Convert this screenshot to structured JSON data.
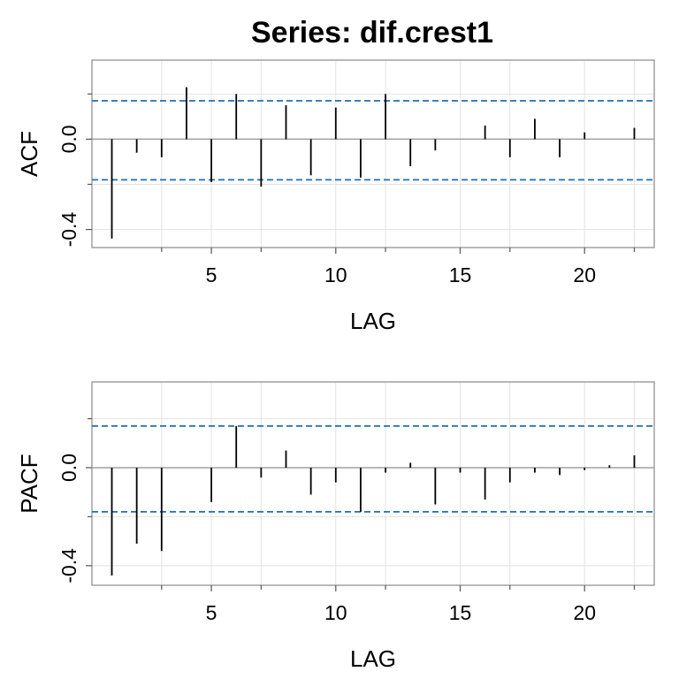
{
  "chart_data": [
    {
      "type": "bar",
      "title": "Series:  dif.crest1",
      "xlabel": "LAG",
      "ylabel": "ACF",
      "xlim": [
        0.2,
        22.8
      ],
      "ylim": [
        -0.48,
        0.35
      ],
      "x_ticks": [
        5,
        10,
        15,
        20
      ],
      "x_tick_labels": [
        "5",
        "10",
        "15",
        "20"
      ],
      "y_ticks": [
        -0.4,
        0.0
      ],
      "y_tick_labels": [
        "-0.4",
        "0.0"
      ],
      "minor_y_ticks": [
        -0.2,
        0.2
      ],
      "minor_x_ticks": [
        3,
        7,
        12,
        17,
        22
      ],
      "grid": true,
      "zero_line": 0,
      "confidence_bounds": [
        0.17,
        -0.18
      ],
      "bound_color": "#1f6fb5",
      "bar_color": "#000000",
      "x": [
        1,
        2,
        3,
        4,
        5,
        6,
        7,
        8,
        9,
        10,
        11,
        12,
        13,
        14,
        15,
        16,
        17,
        18,
        19,
        20,
        21,
        22
      ],
      "values": [
        -0.44,
        -0.06,
        -0.08,
        0.23,
        -0.19,
        0.2,
        -0.21,
        0.15,
        -0.16,
        0.14,
        -0.17,
        0.2,
        -0.12,
        -0.05,
        0.0,
        0.06,
        -0.08,
        0.09,
        -0.08,
        0.03,
        0.0,
        0.05
      ]
    },
    {
      "type": "bar",
      "title": "",
      "xlabel": "LAG",
      "ylabel": "PACF",
      "xlim": [
        0.2,
        22.8
      ],
      "ylim": [
        -0.48,
        0.35
      ],
      "x_ticks": [
        5,
        10,
        15,
        20
      ],
      "x_tick_labels": [
        "5",
        "10",
        "15",
        "20"
      ],
      "y_ticks": [
        -0.4,
        0.0
      ],
      "y_tick_labels": [
        "-0.4",
        "0.0"
      ],
      "minor_y_ticks": [
        -0.2,
        0.2
      ],
      "minor_x_ticks": [
        3,
        7,
        12,
        17,
        22
      ],
      "grid": true,
      "zero_line": 0,
      "confidence_bounds": [
        0.17,
        -0.18
      ],
      "bound_color": "#1f6fb5",
      "bar_color": "#000000",
      "x": [
        1,
        2,
        3,
        4,
        5,
        6,
        7,
        8,
        9,
        10,
        11,
        12,
        13,
        14,
        15,
        16,
        17,
        18,
        19,
        20,
        21,
        22
      ],
      "values": [
        -0.44,
        -0.31,
        -0.34,
        0.0,
        -0.14,
        0.17,
        -0.04,
        0.07,
        -0.11,
        -0.06,
        -0.18,
        -0.02,
        0.02,
        -0.15,
        -0.02,
        -0.13,
        -0.06,
        -0.02,
        -0.03,
        -0.01,
        0.01,
        0.05
      ]
    }
  ]
}
